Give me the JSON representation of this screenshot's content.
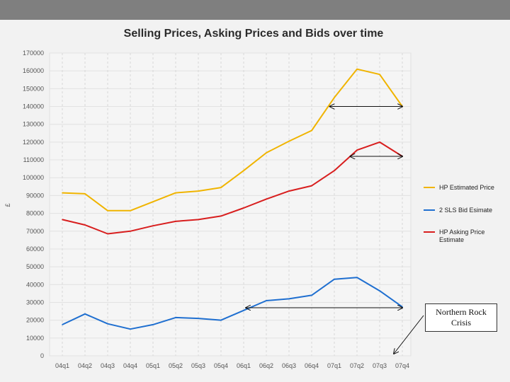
{
  "chart_data": {
    "type": "line",
    "title": "Selling Prices, Asking Prices and Bids over time",
    "ylabel": "£",
    "xlabel": "",
    "ylim": [
      0,
      170000
    ],
    "yticks": [
      0,
      10000,
      20000,
      30000,
      40000,
      50000,
      60000,
      70000,
      80000,
      90000,
      100000,
      110000,
      120000,
      130000,
      140000,
      150000,
      160000,
      170000
    ],
    "categories": [
      "04q1",
      "04q2",
      "04q3",
      "04q4",
      "05q1",
      "05q2",
      "05q3",
      "05q4",
      "06q1",
      "06q2",
      "06q3",
      "06q4",
      "07q1",
      "07q2",
      "07q3",
      "07q4"
    ],
    "series": [
      {
        "name": "HP Estimated Price",
        "color": "#f0b400",
        "values": [
          91500,
          91000,
          81500,
          81500,
          86500,
          91500,
          92500,
          94500,
          104000,
          114000,
          120500,
          126500,
          145000,
          161000,
          158000,
          140000
        ]
      },
      {
        "name": "2 SLS Bid Esimate",
        "color": "#1f6fd0",
        "values": [
          17500,
          23500,
          18000,
          15000,
          17500,
          21500,
          21000,
          20000,
          25500,
          31000,
          32000,
          34000,
          43000,
          44000,
          36500,
          27500
        ]
      },
      {
        "name": "HP Asking Price Estimate",
        "color": "#d81e1e",
        "values": [
          76500,
          73500,
          68500,
          70000,
          73000,
          75500,
          76500,
          78500,
          83000,
          88000,
          92500,
          95500,
          104000,
          115500,
          120000,
          112000
        ]
      }
    ],
    "legend": {
      "position": "right",
      "entries": [
        {
          "label": "HP Estimated Price",
          "color": "#f0b400"
        },
        {
          "label": "2 SLS Bid Esimate",
          "color": "#1f6fd0"
        },
        {
          "label_line1": "HP Asking Price",
          "label_line2": "Estimate",
          "color": "#d81e1e"
        }
      ]
    },
    "grid": true
  },
  "callout": {
    "line1": "Northern Rock",
    "line2": "Crisis"
  }
}
